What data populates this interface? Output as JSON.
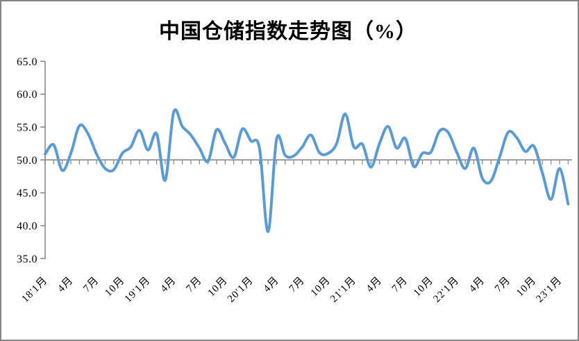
{
  "page": {
    "background": "#ffffff",
    "border_color": "#858585"
  },
  "chart_data": {
    "type": "line",
    "title": "中国仓储指数走势图（%）",
    "grid": false,
    "legend": "none",
    "axis_color": "#808080",
    "text_color": "#000000",
    "y_axis": {
      "min": 35,
      "max": 65,
      "step": 5,
      "tick_labels": [
        "65.0",
        "60.0",
        "55.0",
        "50.0",
        "45.0",
        "40.0",
        "35.0"
      ],
      "category_axis_crosses_at": 50
    },
    "x_axis": {
      "tick_interval_months": 1,
      "label_interval_months": 3,
      "tick_labels": [
        "18'1月",
        "4月",
        "7月",
        "10月",
        "19'1月",
        "4月",
        "7月",
        "10月",
        "20'1月",
        "4月",
        "7月",
        "10月",
        "21'1月",
        "4月",
        "7月",
        "10月",
        "22'1月",
        "4月",
        "7月",
        "10月",
        "23'1月"
      ]
    },
    "categories": [
      "18'1月",
      "18'2月",
      "18'3月",
      "18'4月",
      "18'5月",
      "18'6月",
      "18'7月",
      "18'8月",
      "18'9月",
      "18'10月",
      "18'11月",
      "18'12月",
      "19'1月",
      "19'2月",
      "19'3月",
      "19'4月",
      "19'5月",
      "19'6月",
      "19'7月",
      "19'8月",
      "19'9月",
      "19'10月",
      "19'11月",
      "19'12月",
      "20'1月",
      "20'2月",
      "20'3月",
      "20'4月",
      "20'5月",
      "20'6月",
      "20'7月",
      "20'8月",
      "20'9月",
      "20'10月",
      "20'11月",
      "20'12月",
      "21'1月",
      "21'2月",
      "21'3月",
      "21'4月",
      "21'5月",
      "21'6月",
      "21'7月",
      "21'8月",
      "21'9月",
      "21'10月",
      "21'11月",
      "21'12月",
      "22'1月",
      "22'2月",
      "22'3月",
      "22'4月",
      "22'5月",
      "22'6月",
      "22'7月",
      "22'8月",
      "22'9月",
      "22'10月",
      "22'11月",
      "22'12月",
      "23'1月",
      "23'2月"
    ],
    "series": [
      {
        "name": "中国仓储指数",
        "color": "#5b9bd5",
        "smoothed": true,
        "stroke_width": 4,
        "values": [
          50.9,
          52.3,
          48.4,
          51.0,
          55.2,
          54.0,
          50.9,
          48.7,
          48.5,
          51.0,
          52.0,
          54.5,
          51.5,
          54.0,
          46.9,
          57.3,
          55.1,
          53.8,
          51.8,
          49.8,
          54.6,
          52.5,
          50.4,
          54.7,
          52.9,
          51.8,
          39.1,
          53.2,
          50.7,
          50.6,
          52.0,
          53.8,
          51.1,
          51.0,
          52.5,
          57.0,
          52.0,
          52.4,
          48.9,
          52.5,
          55.1,
          51.8,
          53.3,
          49.0,
          51.0,
          51.2,
          54.4,
          54.2,
          51.2,
          48.7,
          51.8,
          47.2,
          46.8,
          50.4,
          54.2,
          53.4,
          51.3,
          52.1,
          48.0,
          44.0,
          48.7,
          43.3
        ]
      }
    ]
  }
}
